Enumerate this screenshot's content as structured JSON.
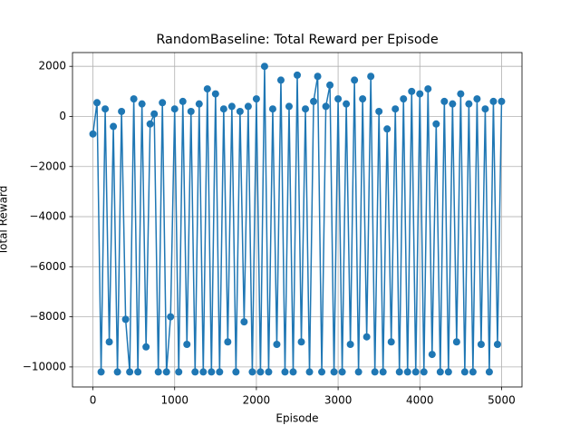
{
  "chart_data": {
    "type": "line",
    "title": "RandomBaseline: Total Reward per Episode",
    "x_label": "Episode",
    "y_label": "Total Reward",
    "x": [
      0,
      50,
      100,
      150,
      200,
      250,
      300,
      350,
      400,
      450,
      500,
      550,
      600,
      650,
      700,
      750,
      800,
      850,
      900,
      950,
      1000,
      1050,
      1100,
      1150,
      1200,
      1250,
      1300,
      1350,
      1400,
      1450,
      1500,
      1550,
      1600,
      1650,
      1700,
      1750,
      1800,
      1850,
      1900,
      1950,
      2000,
      2050,
      2100,
      2150,
      2200,
      2250,
      2300,
      2350,
      2400,
      2450,
      2500,
      2550,
      2600,
      2650,
      2700,
      2750,
      2800,
      2850,
      2900,
      2950,
      3000,
      3050,
      3100,
      3150,
      3200,
      3250,
      3300,
      3350,
      3400,
      3450,
      3500,
      3550,
      3600,
      3650,
      3700,
      3750,
      3800,
      3850,
      3900,
      3950,
      4000,
      4050,
      4100,
      4150,
      4200,
      4250,
      4300,
      4350,
      4400,
      4450,
      4500,
      4550,
      4600,
      4650,
      4700,
      4750,
      4800,
      4850,
      4900,
      4950,
      5000
    ],
    "series": [
      {
        "name": "Total Reward",
        "color": "#1f77b4",
        "values": [
          -700,
          550,
          -10200,
          300,
          -9000,
          -400,
          -10200,
          200,
          -8100,
          -10200,
          700,
          -10200,
          500,
          -9200,
          -300,
          100,
          -10200,
          550,
          -10200,
          -8000,
          300,
          -10200,
          600,
          -9100,
          200,
          -10200,
          500,
          -10200,
          1100,
          -10200,
          900,
          -10200,
          300,
          -9000,
          400,
          -10200,
          200,
          -8200,
          400,
          -10200,
          700,
          -10200,
          2000,
          -10200,
          300,
          -9100,
          1450,
          -10200,
          400,
          -10200,
          1650,
          -9000,
          300,
          -10200,
          600,
          1600,
          -10200,
          400,
          1250,
          -10200,
          700,
          -10200,
          500,
          -9100,
          1450,
          -10200,
          700,
          -8800,
          1600,
          -10200,
          200,
          -10200,
          -500,
          -9000,
          300,
          -10200,
          700,
          -10200,
          1000,
          -10200,
          900,
          -10200,
          1100,
          -9500,
          -300,
          -10200,
          600,
          -10200,
          500,
          -9000,
          900,
          -10200,
          500,
          -10200,
          700,
          -9100,
          300,
          -10200,
          600,
          -9100,
          600
        ]
      }
    ],
    "xlim": [
      -250,
      5250
    ],
    "ylim": [
      -10800,
      2550
    ],
    "xticks": [
      0,
      1000,
      2000,
      3000,
      4000,
      5000
    ],
    "yticks": [
      {
        "value": -10000,
        "label": "−10000"
      },
      {
        "value": -8000,
        "label": "−8000"
      },
      {
        "value": -6000,
        "label": "−6000"
      },
      {
        "value": -4000,
        "label": "−4000"
      },
      {
        "value": -2000,
        "label": "−2000"
      },
      0,
      2000
    ],
    "grid": true
  }
}
